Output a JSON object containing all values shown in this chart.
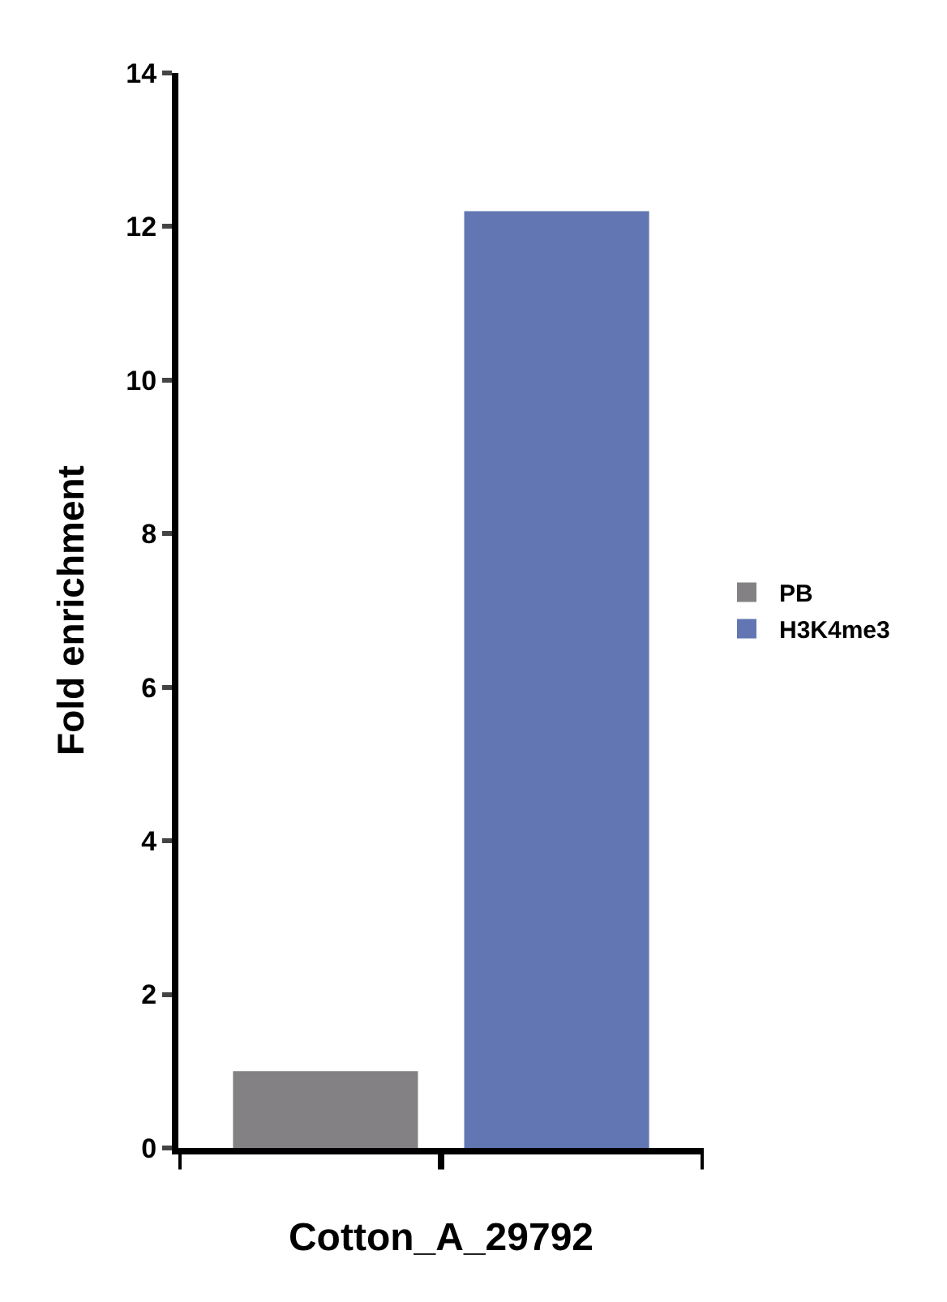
{
  "chart_data": {
    "type": "bar",
    "ylabel": "Fold enrichment",
    "categories": [
      "Cotton_A_29792"
    ],
    "series": [
      {
        "name": "PB",
        "color": "#838183",
        "values": [
          1.0
        ]
      },
      {
        "name": "H3K4me3",
        "color": "#6176b2",
        "values": [
          12.2
        ]
      }
    ],
    "ylim": [
      0,
      14
    ],
    "yticks": [
      0,
      2,
      4,
      6,
      8,
      10,
      12,
      14
    ],
    "grid": false,
    "legend": "right"
  }
}
